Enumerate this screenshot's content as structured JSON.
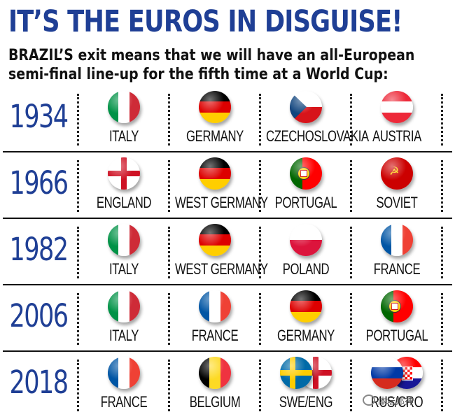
{
  "title": "IT’S THE EUROS IN DISGUISE!",
  "subtitle_lines": [
    "BRAZIL’S exit means that we will have an all-European",
    "semi-final line-up for the fifth time at a World Cup:"
  ],
  "rows": [
    {
      "year": "1934",
      "teams": [
        {
          "name": "ITALY",
          "flag": "italy-flag-icon"
        },
        {
          "name": "GERMANY",
          "flag": "germany-flag-icon"
        },
        {
          "name": "CZECHOSLOVAKIA",
          "flag": "czechoslovakia-flag-icon"
        },
        {
          "name": "AUSTRIA",
          "flag": "austria-flag-icon"
        }
      ]
    },
    {
      "year": "1966",
      "teams": [
        {
          "name": "ENGLAND",
          "flag": "england-flag-icon"
        },
        {
          "name": "WEST GERMANY",
          "flag": "west-germany-flag-icon"
        },
        {
          "name": "PORTUGAL",
          "flag": "portugal-flag-icon"
        },
        {
          "name": "SOVIET",
          "flag": "soviet-flag-icon"
        }
      ]
    },
    {
      "year": "1982",
      "teams": [
        {
          "name": "ITALY",
          "flag": "italy-flag-icon"
        },
        {
          "name": "WEST GERMANY",
          "flag": "west-germany-flag-icon"
        },
        {
          "name": "POLAND",
          "flag": "poland-flag-icon"
        },
        {
          "name": "FRANCE",
          "flag": "france-flag-icon"
        }
      ]
    },
    {
      "year": "2006",
      "teams": [
        {
          "name": "ITALY",
          "flag": "italy-flag-icon"
        },
        {
          "name": "FRANCE",
          "flag": "france-flag-icon"
        },
        {
          "name": "GERMANY",
          "flag": "germany-flag-icon"
        },
        {
          "name": "PORTUGAL",
          "flag": "portugal-flag-icon"
        }
      ]
    },
    {
      "year": "2018",
      "teams": [
        {
          "name": "FRANCE",
          "flag": "france-flag-icon"
        },
        {
          "name": "BELGIUM",
          "flag": "belgium-flag-icon"
        },
        {
          "name": "SWE/ENG",
          "flag": "sweden-england-flags-icon"
        },
        {
          "name": "RUS/CRO",
          "flag": "russia-croatia-flags-icon"
        }
      ]
    }
  ],
  "watermark": "体坛邦神",
  "colors": {
    "title_blue": "#1f3f95",
    "italy": [
      "#009246",
      "#ffffff",
      "#ce2b37"
    ],
    "germany": [
      "#000000",
      "#dd0000",
      "#ffce00"
    ],
    "france": [
      "#0055a4",
      "#ffffff",
      "#ef4135"
    ],
    "belgium": [
      "#000000",
      "#fdda24",
      "#ef3340"
    ],
    "poland": [
      "#ffffff",
      "#dc143c"
    ],
    "austria": [
      "#ed2939",
      "#ffffff",
      "#ed2939"
    ],
    "england": [
      "#ffffff",
      "#ce1124"
    ],
    "portugal": [
      "#006600",
      "#ff0000",
      "#ffcc00"
    ],
    "soviet": [
      "#cc0000",
      "#ffd700"
    ],
    "czechoslovakia": [
      "#ffffff",
      "#d7141a",
      "#11457e"
    ],
    "sweden": [
      "#006aa7",
      "#fecc00"
    ],
    "russia": [
      "#ffffff",
      "#0039a6",
      "#d52b1e"
    ],
    "croatia": [
      "#ff0000",
      "#ffffff",
      "#171796"
    ]
  }
}
